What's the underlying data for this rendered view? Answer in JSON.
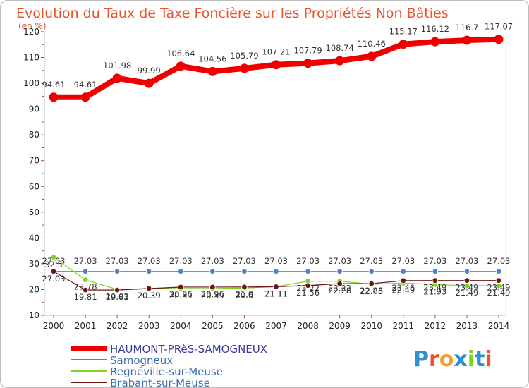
{
  "title": "Evolution du Taux de Taxe Foncière sur les Propriétés Non Bâties",
  "subtitle": "(en %)",
  "logo_text": "Proxiti",
  "chart_data": {
    "type": "line",
    "categories": [
      "2000",
      "2001",
      "2002",
      "2003",
      "2004",
      "2005",
      "2006",
      "2007",
      "2008",
      "2009",
      "2010",
      "2011",
      "2012",
      "2013",
      "2014"
    ],
    "ylim": [
      10,
      120
    ],
    "yticks": [
      10,
      20,
      30,
      40,
      50,
      60,
      70,
      80,
      90,
      100,
      110,
      120
    ],
    "grid": false,
    "legend_position": "bottom-left",
    "series": [
      {
        "name": "HAUMONT-PRèS-SAMOGNEUX",
        "color": "#ee0000",
        "values": [
          94.61,
          94.61,
          101.98,
          99.99,
          106.64,
          104.56,
          105.79,
          107.21,
          107.79,
          108.74,
          110.46,
          115.17,
          116.12,
          116.7,
          117.07
        ],
        "labels": [
          "94.61",
          "94.61",
          "101.98",
          "99.99",
          "106.64",
          "104.56",
          "105.79",
          "107.21",
          "107.79",
          "108.74",
          "110.46",
          "115.17",
          "116.12",
          "116.7",
          "117.07"
        ]
      },
      {
        "name": "Samogneux",
        "color": "#4a86c6",
        "values": [
          27.03,
          27.03,
          27.03,
          27.03,
          27.03,
          27.03,
          27.03,
          27.03,
          27.03,
          27.03,
          27.03,
          27.03,
          27.03,
          27.03,
          27.03
        ],
        "labels": [
          "27.03",
          "27.03",
          "27.03",
          "27.03",
          "27.03",
          "27.03",
          "27.03",
          "27.03",
          "27.03",
          "27.03",
          "27.03",
          "27.03",
          "27.03",
          "27.03",
          "27.03"
        ]
      },
      {
        "name": "Regnéville-sur-Meuse",
        "color": "#7ed321",
        "values": [
          32.5,
          23.78,
          20.03,
          20.39,
          20.39,
          20.39,
          20.6,
          21.11,
          23.22,
          23.22,
          22.05,
          22.49,
          21.93,
          21.49,
          21.49
        ],
        "labels": [
          "32.5",
          "23.78",
          "20.03",
          "20.39",
          "20.39",
          "20.39",
          "20.6",
          "21.11",
          "23.22",
          "23.22",
          "22.05",
          "22.49",
          "21.93",
          "21.49",
          "21.49"
        ]
      },
      {
        "name": "Brabant-sur-Meuse",
        "color": "#6b1515",
        "values": [
          27.03,
          19.81,
          19.81,
          20.39,
          20.96,
          20.96,
          21.0,
          21.11,
          21.56,
          22.28,
          22.28,
          23.46,
          23.49,
          23.49,
          23.49
        ],
        "labels": [
          "27.03",
          "19.81",
          "19.81",
          "20.39",
          "20.96",
          "20.96",
          "21.0",
          "21.11",
          "21.56",
          "22.28",
          "22.28",
          "23.46",
          "23.49",
          "23.49",
          "23.49"
        ]
      }
    ]
  }
}
